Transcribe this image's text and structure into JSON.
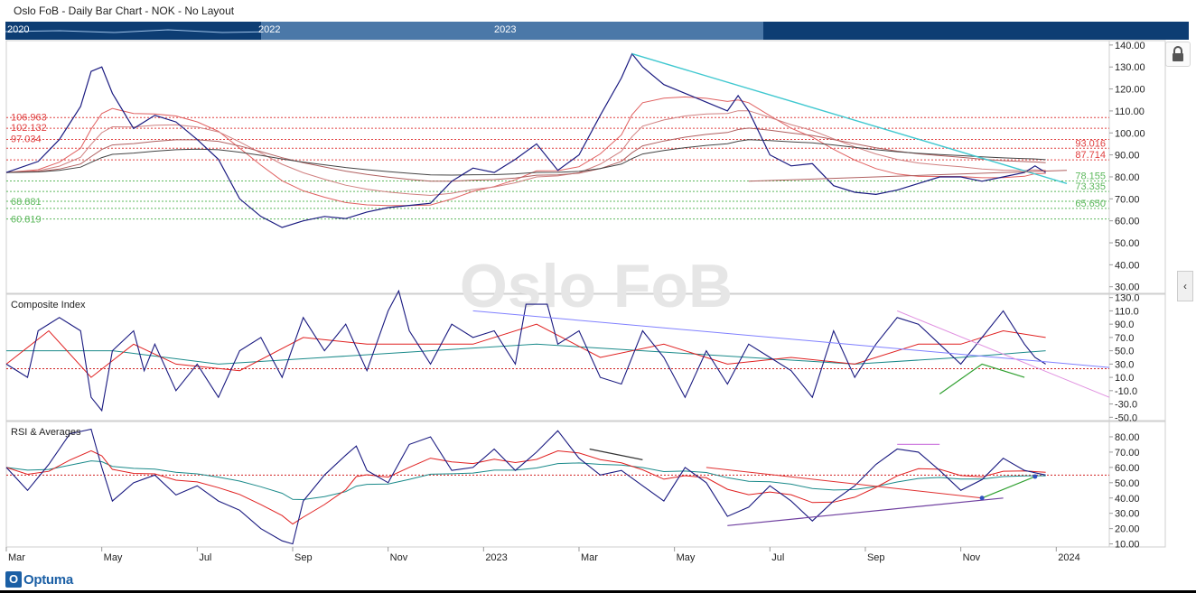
{
  "window": {
    "title": "Oslo FoB - Daily Bar Chart - NOK - No Layout"
  },
  "navigator": {
    "labels": [
      "2020",
      "2022",
      "2023"
    ]
  },
  "watermark": "Oslo FoB",
  "brand": "Optuma",
  "colors": {
    "price": "#1a1a80",
    "ma_red": "#e02020",
    "ma_teal": "#1a8a8a",
    "fib_red": "#e04040",
    "fib_green": "#5cb85c",
    "trend_cyan": "#40c8d0",
    "nav_bg": "#0d3d73"
  },
  "icons": {
    "lock": "lock-icon",
    "collapse": "chevron-left-icon"
  },
  "chart_data": [
    {
      "type": "line",
      "panel": "price",
      "title": "Oslo FoB - Daily Bar Chart - NOK - No Layout",
      "x_axis": {
        "labels": [
          "Mar",
          "May",
          "Jul",
          "Sep",
          "Nov",
          "2023",
          "Mar",
          "May",
          "Jul",
          "Sep",
          "Nov",
          "2024"
        ]
      },
      "y_axis": {
        "ticks": [
          "140.00",
          "130.00",
          "120.00",
          "110.00",
          "100.00",
          "90.00",
          "80.00",
          "70.00",
          "60.00",
          "50.00",
          "40.00",
          "30.00"
        ],
        "ylim": [
          27,
          142
        ]
      },
      "price": [
        [
          0,
          82
        ],
        [
          3,
          87
        ],
        [
          5,
          97
        ],
        [
          7,
          112
        ],
        [
          8,
          128
        ],
        [
          9,
          130
        ],
        [
          10,
          118
        ],
        [
          12,
          102
        ],
        [
          14,
          108
        ],
        [
          16,
          105
        ],
        [
          18,
          97
        ],
        [
          20,
          88
        ],
        [
          22,
          70
        ],
        [
          24,
          62
        ],
        [
          26,
          57
        ],
        [
          28,
          60
        ],
        [
          30,
          62
        ],
        [
          32,
          61
        ],
        [
          34,
          64
        ],
        [
          36,
          66
        ],
        [
          38,
          67
        ],
        [
          40,
          68
        ],
        [
          42,
          78
        ],
        [
          44,
          84
        ],
        [
          46,
          82
        ],
        [
          48,
          88
        ],
        [
          50,
          95
        ],
        [
          52,
          83
        ],
        [
          54,
          90
        ],
        [
          56,
          108
        ],
        [
          58,
          125
        ],
        [
          59,
          136
        ],
        [
          60,
          130
        ],
        [
          62,
          122
        ],
        [
          64,
          118
        ],
        [
          66,
          114
        ],
        [
          68,
          110
        ],
        [
          69,
          117
        ],
        [
          70,
          110
        ],
        [
          72,
          90
        ],
        [
          74,
          85
        ],
        [
          76,
          86
        ],
        [
          78,
          76
        ],
        [
          80,
          73
        ],
        [
          82,
          72
        ],
        [
          84,
          74
        ],
        [
          86,
          77
        ],
        [
          88,
          80
        ],
        [
          90,
          80
        ],
        [
          92,
          78
        ],
        [
          94,
          80
        ],
        [
          96,
          82
        ],
        [
          97,
          85
        ],
        [
          98,
          82
        ]
      ],
      "moving_averages": {
        "red": "",
        "teal": ""
      },
      "fib_levels_red": [
        "106.963",
        "102.132",
        "97.034",
        "93.016",
        "87.714"
      ],
      "fib_levels_green": [
        "78.155",
        "73.335",
        "65.650",
        "68.881",
        "60.819"
      ],
      "fib_values_red": [
        106.963,
        102.132,
        97.034,
        93.016,
        87.714
      ],
      "fib_values_green": [
        78.155,
        73.335,
        65.65,
        68.881,
        60.819
      ],
      "trendline_cyan": [
        [
          59,
          136
        ],
        [
          100,
          77
        ]
      ],
      "trendline_flat": [
        [
          70,
          78
        ],
        [
          100,
          83
        ]
      ]
    },
    {
      "type": "line",
      "panel": "composite",
      "title": "Composite Index",
      "y_axis": {
        "ticks": [
          "130.0",
          "110.0",
          "90.0",
          "70.0",
          "50.0",
          "30.0",
          "10.0",
          "-10.0",
          "-30.0",
          "-50.0"
        ],
        "ylim": [
          -55,
          135
        ]
      },
      "composite": [
        [
          0,
          30
        ],
        [
          2,
          10
        ],
        [
          3,
          80
        ],
        [
          5,
          100
        ],
        [
          7,
          80
        ],
        [
          8,
          -20
        ],
        [
          9,
          -40
        ],
        [
          10,
          50
        ],
        [
          12,
          80
        ],
        [
          13,
          20
        ],
        [
          14,
          60
        ],
        [
          16,
          -10
        ],
        [
          18,
          30
        ],
        [
          20,
          -20
        ],
        [
          22,
          50
        ],
        [
          24,
          70
        ],
        [
          26,
          10
        ],
        [
          28,
          100
        ],
        [
          30,
          50
        ],
        [
          32,
          90
        ],
        [
          34,
          20
        ],
        [
          36,
          110
        ],
        [
          37,
          140
        ],
        [
          38,
          80
        ],
        [
          40,
          30
        ],
        [
          42,
          90
        ],
        [
          44,
          70
        ],
        [
          46,
          80
        ],
        [
          48,
          30
        ],
        [
          49,
          120
        ],
        [
          51,
          120
        ],
        [
          52,
          60
        ],
        [
          54,
          80
        ],
        [
          56,
          10
        ],
        [
          58,
          0
        ],
        [
          60,
          80
        ],
        [
          62,
          40
        ],
        [
          64,
          -20
        ],
        [
          66,
          50
        ],
        [
          68,
          0
        ],
        [
          70,
          60
        ],
        [
          72,
          40
        ],
        [
          74,
          20
        ],
        [
          76,
          -20
        ],
        [
          78,
          80
        ],
        [
          80,
          10
        ],
        [
          82,
          60
        ],
        [
          84,
          100
        ],
        [
          86,
          90
        ],
        [
          88,
          60
        ],
        [
          90,
          30
        ],
        [
          92,
          70
        ],
        [
          94,
          110
        ],
        [
          96,
          60
        ],
        [
          97,
          40
        ],
        [
          98,
          30
        ]
      ],
      "signal_red": [
        [
          0,
          30
        ],
        [
          4,
          80
        ],
        [
          8,
          10
        ],
        [
          12,
          60
        ],
        [
          16,
          30
        ],
        [
          22,
          20
        ],
        [
          28,
          70
        ],
        [
          34,
          60
        ],
        [
          38,
          60
        ],
        [
          44,
          60
        ],
        [
          50,
          90
        ],
        [
          56,
          40
        ],
        [
          62,
          60
        ],
        [
          68,
          30
        ],
        [
          74,
          40
        ],
        [
          80,
          30
        ],
        [
          86,
          60
        ],
        [
          90,
          60
        ],
        [
          94,
          80
        ],
        [
          98,
          70
        ]
      ],
      "signal_teal": [
        [
          0,
          50
        ],
        [
          10,
          50
        ],
        [
          20,
          30
        ],
        [
          30,
          40
        ],
        [
          40,
          50
        ],
        [
          50,
          60
        ],
        [
          60,
          50
        ],
        [
          70,
          40
        ],
        [
          80,
          30
        ],
        [
          90,
          40
        ],
        [
          98,
          50
        ]
      ],
      "reference_line": 23,
      "trendline_blue": [
        [
          44,
          110
        ],
        [
          104,
          25
        ]
      ],
      "trendline_pink": [
        [
          84,
          110
        ],
        [
          104,
          -20
        ]
      ],
      "trendline_green": [
        [
          88,
          -15
        ],
        [
          92,
          30
        ],
        [
          96,
          10
        ]
      ]
    },
    {
      "type": "line",
      "panel": "rsi",
      "title": "RSI & Averages",
      "y_axis": {
        "ticks": [
          "80.00",
          "70.00",
          "60.00",
          "50.00",
          "40.00",
          "30.00",
          "20.00",
          "10.00"
        ],
        "ylim": [
          8,
          90
        ]
      },
      "rsi": [
        [
          0,
          60
        ],
        [
          2,
          45
        ],
        [
          4,
          62
        ],
        [
          6,
          82
        ],
        [
          8,
          85
        ],
        [
          9,
          60
        ],
        [
          10,
          38
        ],
        [
          12,
          50
        ],
        [
          14,
          55
        ],
        [
          16,
          42
        ],
        [
          18,
          48
        ],
        [
          20,
          38
        ],
        [
          22,
          32
        ],
        [
          24,
          20
        ],
        [
          26,
          12
        ],
        [
          27,
          10
        ],
        [
          28,
          38
        ],
        [
          30,
          55
        ],
        [
          32,
          68
        ],
        [
          33,
          74
        ],
        [
          34,
          58
        ],
        [
          36,
          50
        ],
        [
          38,
          75
        ],
        [
          40,
          80
        ],
        [
          42,
          58
        ],
        [
          44,
          60
        ],
        [
          46,
          72
        ],
        [
          48,
          58
        ],
        [
          50,
          70
        ],
        [
          52,
          84
        ],
        [
          54,
          66
        ],
        [
          56,
          55
        ],
        [
          58,
          58
        ],
        [
          60,
          48
        ],
        [
          62,
          38
        ],
        [
          64,
          60
        ],
        [
          66,
          50
        ],
        [
          68,
          28
        ],
        [
          70,
          34
        ],
        [
          72,
          48
        ],
        [
          74,
          38
        ],
        [
          76,
          25
        ],
        [
          78,
          38
        ],
        [
          80,
          48
        ],
        [
          82,
          62
        ],
        [
          84,
          72
        ],
        [
          86,
          70
        ],
        [
          88,
          58
        ],
        [
          90,
          45
        ],
        [
          92,
          52
        ],
        [
          94,
          66
        ],
        [
          96,
          58
        ],
        [
          98,
          55
        ]
      ],
      "reference_line": 55,
      "trendline_red": [
        [
          66,
          60
        ],
        [
          92,
          40
        ]
      ],
      "trendline_purple": [
        [
          68,
          22
        ],
        [
          94,
          40
        ]
      ],
      "trendline_green": [
        [
          92,
          40
        ],
        [
          97,
          54
        ]
      ],
      "trendline_black": [
        [
          55,
          72
        ],
        [
          60,
          65
        ]
      ],
      "segment_pink": [
        [
          84,
          75
        ],
        [
          88,
          75
        ]
      ]
    }
  ]
}
